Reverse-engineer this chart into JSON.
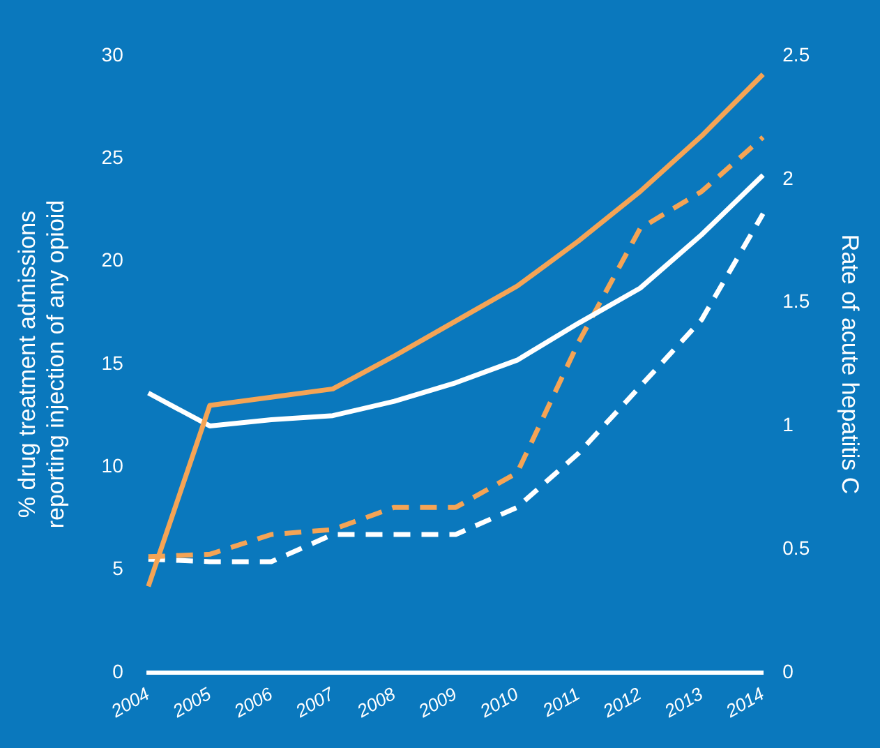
{
  "chart_data": {
    "type": "line",
    "ylabel": "% drug treatment admissions\nreporting injection of any opioid",
    "y2label": "Rate of acute hepatitis C",
    "categories": [
      "2004",
      "2005",
      "2006",
      "2007",
      "2008",
      "2009",
      "2010",
      "2011",
      "2012",
      "2013",
      "2014"
    ],
    "ylim": [
      0,
      30
    ],
    "yticks": [
      0,
      5,
      10,
      15,
      20,
      25,
      30
    ],
    "y2lim": [
      0,
      2.5
    ],
    "y2ticks": [
      0,
      0.5,
      1,
      1.5,
      2,
      2.5
    ],
    "grid": false,
    "legend": false,
    "marker": "none",
    "series": [
      {
        "color": "#f5a455",
        "line_style": "solid",
        "values": [
          4.2,
          13.0,
          13.4,
          13.8,
          15.4,
          17.1,
          18.8,
          21.0,
          23.4,
          26.1,
          29.1
        ]
      },
      {
        "color": "#ffffff",
        "line_style": "solid",
        "values": [
          13.6,
          12.0,
          12.3,
          12.5,
          13.2,
          14.1,
          15.2,
          17.0,
          18.7,
          21.3,
          24.2
        ]
      },
      {
        "color": "#f5a455",
        "line_style": "dashed",
        "axis": "y2",
        "values": [
          0.47,
          0.48,
          0.56,
          0.58,
          0.67,
          0.67,
          0.81,
          1.34,
          1.8,
          1.95,
          2.17
        ]
      },
      {
        "color": "#ffffff",
        "line_style": "dashed",
        "axis": "y2",
        "values": [
          0.46,
          0.45,
          0.45,
          0.56,
          0.56,
          0.56,
          0.67,
          0.89,
          1.16,
          1.43,
          1.86
        ]
      }
    ]
  }
}
